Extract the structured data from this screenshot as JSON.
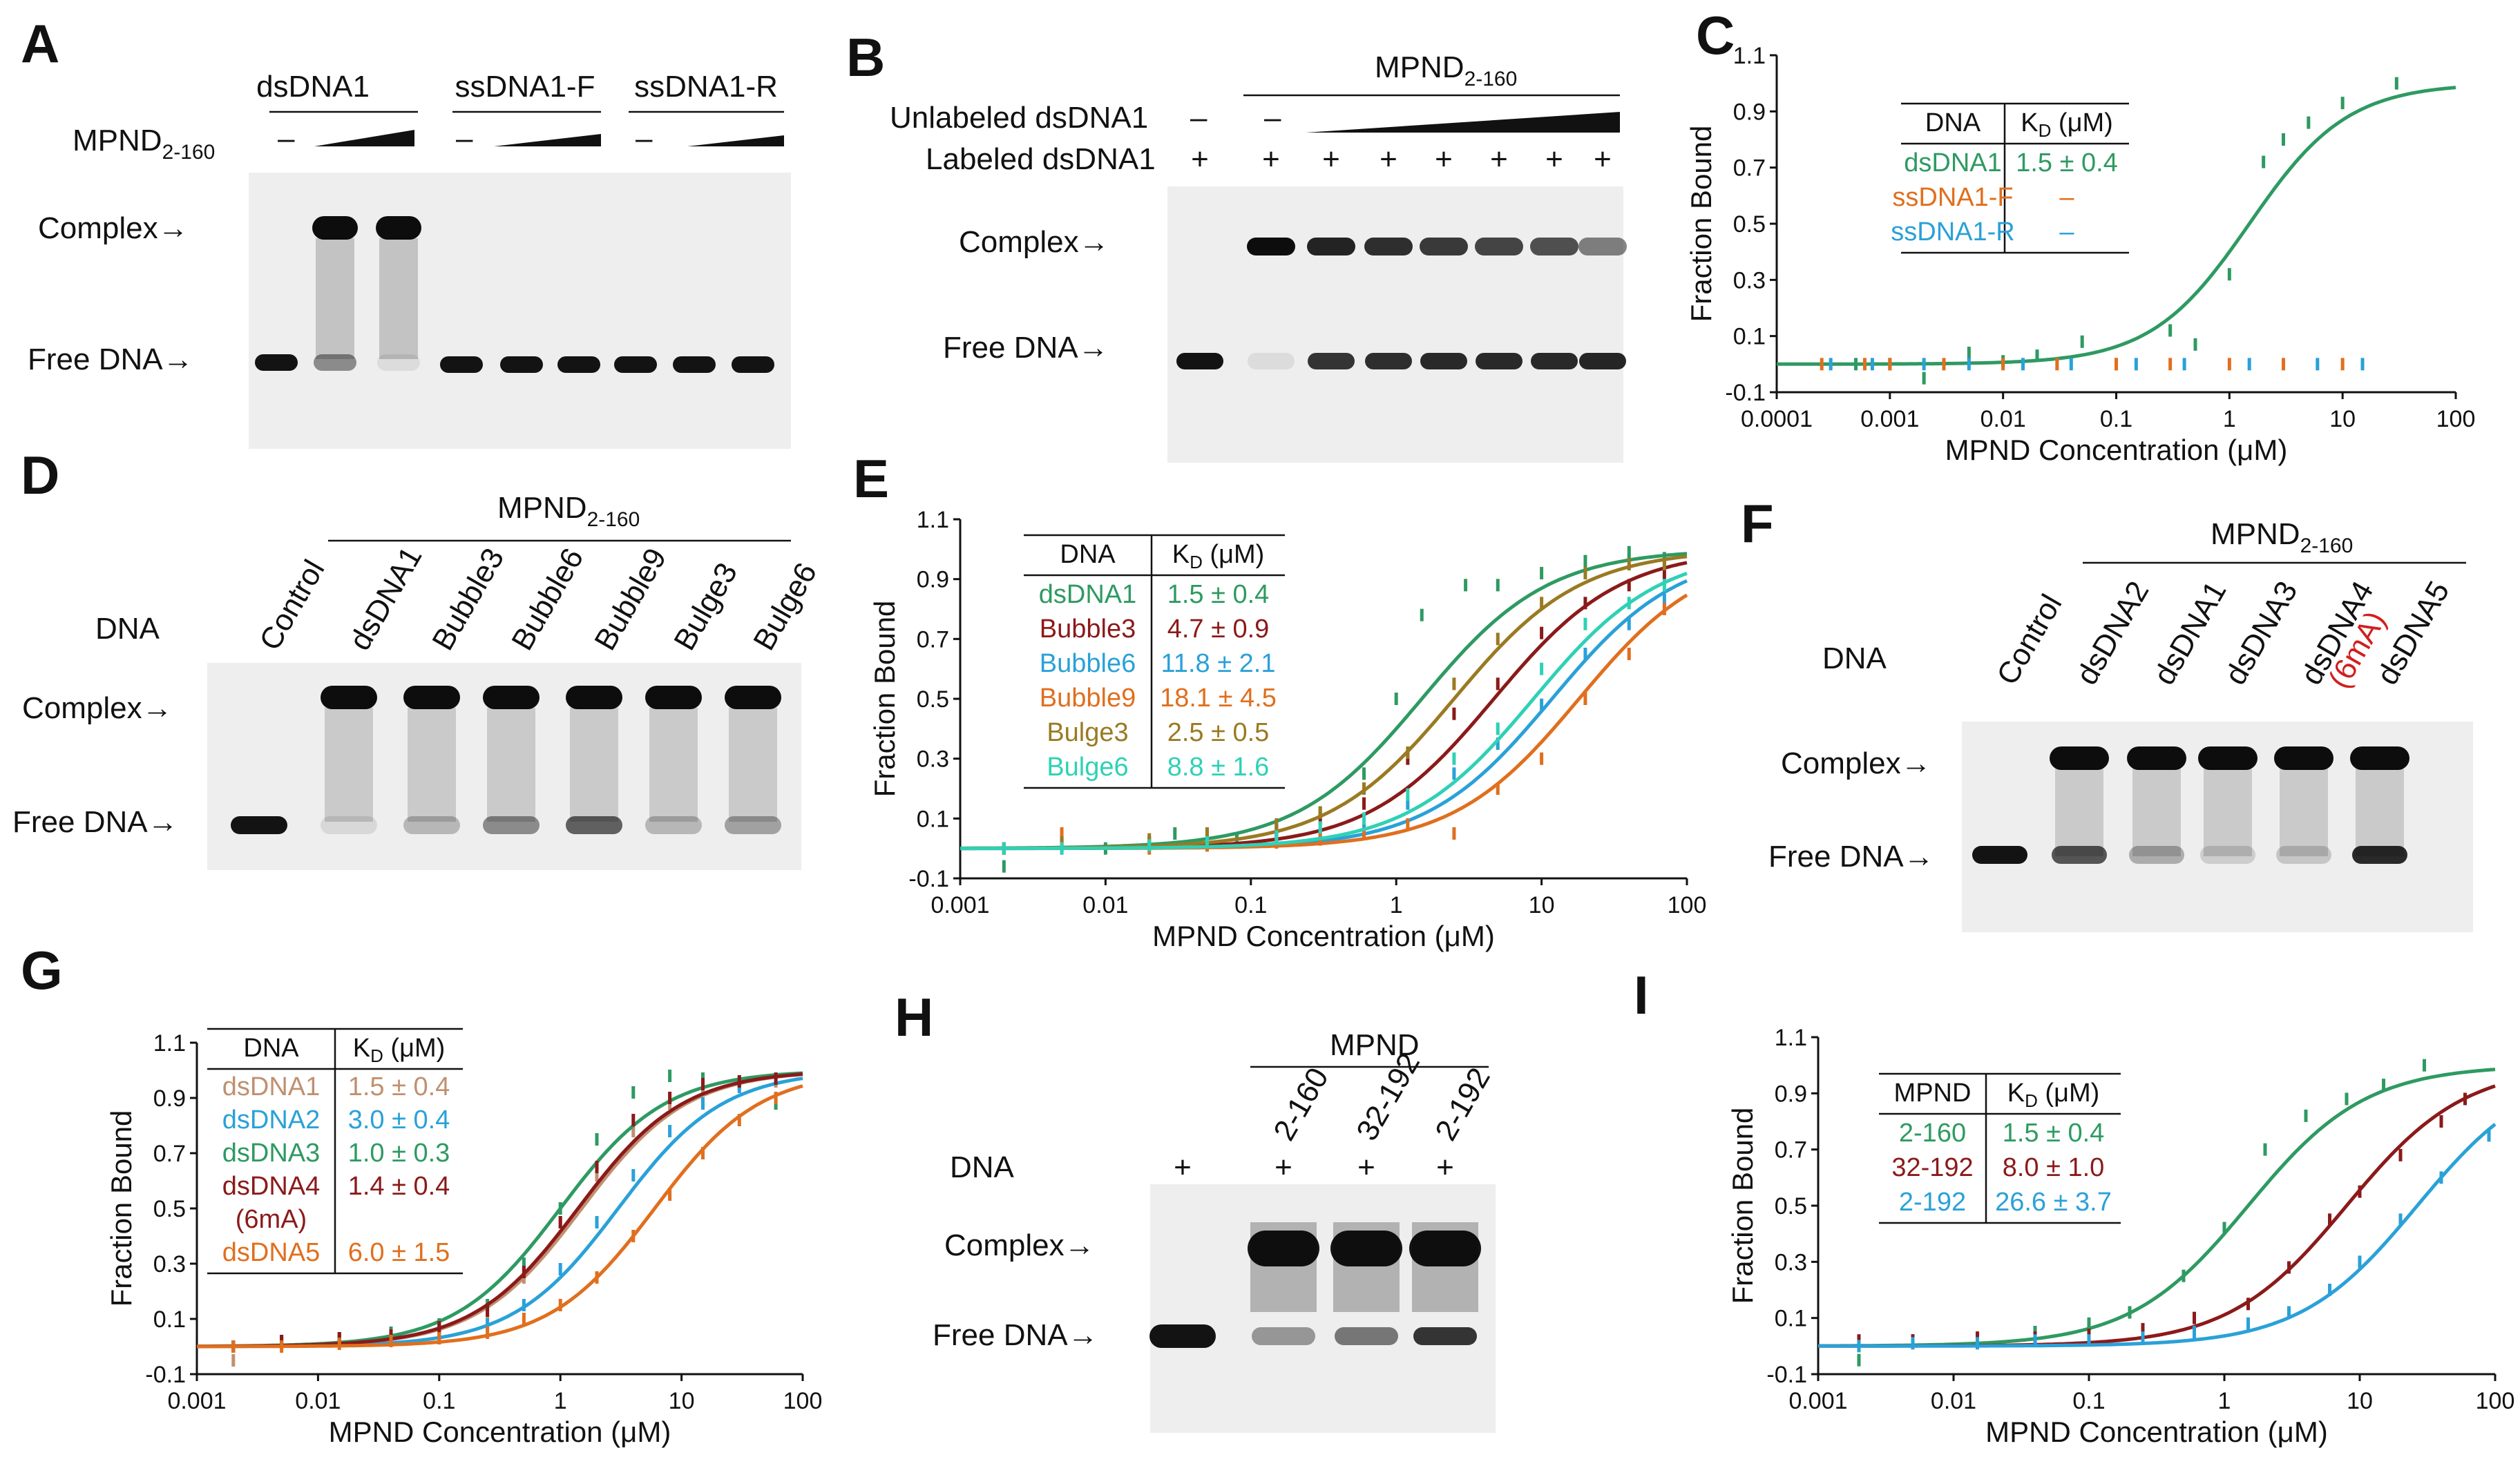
{
  "colors": {
    "green": "#2e9a62",
    "darkred": "#8b1a1a",
    "blue": "#2aa1d8",
    "orange": "#e06f1e",
    "olive": "#9a7a22",
    "teal": "#2fd1b6",
    "tan": "#c09070",
    "red_text": "#d21e1e"
  },
  "panels": {
    "A": {
      "label": "A",
      "groups": [
        "dsDNA1",
        "ssDNA1-F",
        "ssDNA1-R"
      ],
      "protein_main": "MPND",
      "protein_sub": "2-160",
      "minus": "–",
      "complex": "Complex→",
      "free": "Free DNA→"
    },
    "B": {
      "label": "B",
      "protein_main": "MPND",
      "protein_sub": "2-160",
      "unlabeled": "Unlabeled dsDNA1",
      "labeled": "Labeled dsDNA1",
      "minus": "–",
      "plus": "+",
      "complex": "Complex→",
      "free": "Free DNA→"
    },
    "C": {
      "label": "C"
    },
    "D": {
      "label": "D",
      "protein_main": "MPND",
      "protein_sub": "2-160",
      "dna": "DNA",
      "lanes": [
        "Control",
        "dsDNA1",
        "Bubble3",
        "Bubble6",
        "Bubble9",
        "Bulge3",
        "Bulge6"
      ],
      "complex": "Complex→",
      "free": "Free DNA→"
    },
    "E": {
      "label": "E"
    },
    "F": {
      "label": "F",
      "protein_main": "MPND",
      "protein_sub": "2-160",
      "dna": "DNA",
      "lanes": [
        "Control",
        "dsDNA2",
        "dsDNA1",
        "dsDNA3",
        "dsDNA4",
        "dsDNA5"
      ],
      "mod": "(6mA)",
      "complex": "Complex→",
      "free": "Free DNA→"
    },
    "G": {
      "label": "G"
    },
    "H": {
      "label": "H",
      "protein": "MPND",
      "dna": "DNA",
      "lanes": [
        "2-160",
        "32-192",
        "2-192"
      ],
      "plus": "+",
      "complex": "Complex→",
      "free": "Free DNA→"
    },
    "I": {
      "label": "I"
    }
  },
  "chart_data": [
    {
      "panel": "C",
      "type": "scatter",
      "xlabel": "MPND Concentration (μM)",
      "ylabel": "Fraction Bound",
      "xscale": "log",
      "xlim": [
        0.0001,
        100
      ],
      "ylim": [
        -0.1,
        1.1
      ],
      "x_ticks": [
        "0.0001",
        "0.001",
        "0.01",
        "0.1",
        "1",
        "10",
        "100"
      ],
      "y_ticks": [
        "-0.1",
        "0.1",
        "0.3",
        "0.5",
        "0.7",
        "0.9",
        "1.1"
      ],
      "table": {
        "headers": [
          "DNA",
          "K",
          "D",
          " (μM)"
        ],
        "rows": [
          {
            "name": "dsDNA1",
            "kd": "1.5 ± 0.4",
            "color": "#2e9a62"
          },
          {
            "name": "ssDNA1-F",
            "kd": "–",
            "color": "#e06f1e"
          },
          {
            "name": "ssDNA1-R",
            "kd": "–",
            "color": "#2aa1d8"
          }
        ]
      },
      "series": [
        {
          "name": "dsDNA1",
          "color": "#2e9a62",
          "kd": 1.5,
          "fit": true,
          "x": [
            0.0005,
            0.001,
            0.002,
            0.005,
            0.01,
            0.02,
            0.05,
            0.1,
            0.3,
            0.5,
            1,
            2,
            3,
            5,
            10,
            30
          ],
          "y": [
            0.0,
            0.0,
            -0.05,
            0.04,
            0.01,
            0.03,
            0.08,
            0.0,
            0.12,
            0.07,
            0.32,
            0.72,
            0.8,
            0.86,
            0.93,
            1.0
          ]
        },
        {
          "name": "ssDNA1-F",
          "color": "#e06f1e",
          "fit": false,
          "x": [
            0.00025,
            0.0006,
            0.001,
            0.003,
            0.01,
            0.03,
            0.1,
            0.3,
            1,
            3,
            10
          ],
          "y": [
            0.0,
            0.0,
            0.0,
            0.0,
            0.0,
            0.0,
            0.0,
            0.0,
            0.0,
            0.0,
            0.0
          ]
        },
        {
          "name": "ssDNA1-R",
          "color": "#2aa1d8",
          "fit": false,
          "x": [
            0.0003,
            0.0007,
            0.002,
            0.005,
            0.015,
            0.04,
            0.15,
            0.4,
            1.5,
            6,
            15
          ],
          "y": [
            0.0,
            0.0,
            0.0,
            0.0,
            0.0,
            0.0,
            0.0,
            0.0,
            0.0,
            0.0,
            0.0
          ]
        }
      ]
    },
    {
      "panel": "E",
      "type": "scatter",
      "xlabel": "MPND Concentration (μM)",
      "ylabel": "Fraction Bound",
      "xscale": "log",
      "xlim": [
        0.001,
        100
      ],
      "ylim": [
        -0.1,
        1.1
      ],
      "x_ticks": [
        "0.001",
        "0.01",
        "0.1",
        "1",
        "10",
        "100"
      ],
      "y_ticks": [
        "-0.1",
        "0.1",
        "0.3",
        "0.5",
        "0.7",
        "0.9",
        "1.1"
      ],
      "table": {
        "headers": [
          "DNA",
          "K",
          "D",
          " (μM)"
        ],
        "rows": [
          {
            "name": "dsDNA1",
            "kd": "1.5 ± 0.4",
            "color": "#2e9a62"
          },
          {
            "name": "Bubble3",
            "kd": "4.7 ± 0.9",
            "color": "#8b1a1a"
          },
          {
            "name": "Bubble6",
            "kd": "11.8 ± 2.1",
            "color": "#2aa1d8"
          },
          {
            "name": "Bubble9",
            "kd": "18.1 ± 4.5",
            "color": "#e06f1e"
          },
          {
            "name": "Bulge3",
            "kd": "2.5 ± 0.5",
            "color": "#9a7a22"
          },
          {
            "name": "Bulge6",
            "kd": "8.8 ± 1.6",
            "color": "#2fd1b6"
          }
        ]
      },
      "series": [
        {
          "name": "dsDNA1",
          "color": "#2e9a62",
          "kd": 1.5,
          "fit": true,
          "x": [
            0.002,
            0.005,
            0.01,
            0.03,
            0.08,
            0.15,
            0.3,
            0.6,
            1,
            1.5,
            3,
            5,
            10,
            20,
            40,
            70
          ],
          "y": [
            -0.06,
            0.02,
            0.0,
            0.05,
            0.03,
            0.06,
            0.12,
            0.25,
            0.5,
            0.78,
            0.88,
            0.88,
            0.92,
            0.96,
            0.99,
            0.97
          ]
        },
        {
          "name": "Bubble3",
          "color": "#8b1a1a",
          "kd": 4.7,
          "fit": true,
          "x": [
            0.002,
            0.005,
            0.02,
            0.05,
            0.15,
            0.3,
            0.6,
            1.2,
            2.5,
            5,
            10,
            20,
            40,
            70
          ],
          "y": [
            0.0,
            0.01,
            0.02,
            0.04,
            0.06,
            0.1,
            0.15,
            0.3,
            0.45,
            0.55,
            0.72,
            0.82,
            0.88,
            0.92
          ]
        },
        {
          "name": "Bubble6",
          "color": "#2aa1d8",
          "kd": 11.8,
          "fit": true,
          "x": [
            0.002,
            0.005,
            0.02,
            0.05,
            0.15,
            0.3,
            0.6,
            1.2,
            2.5,
            5,
            10,
            20,
            40,
            70
          ],
          "y": [
            0.0,
            0.0,
            0.01,
            0.02,
            0.03,
            0.05,
            0.08,
            0.15,
            0.25,
            0.35,
            0.48,
            0.65,
            0.75,
            0.83
          ]
        },
        {
          "name": "Bubble9",
          "color": "#e06f1e",
          "kd": 18.1,
          "fit": true,
          "x": [
            0.002,
            0.005,
            0.02,
            0.05,
            0.15,
            0.3,
            0.6,
            1.2,
            2.5,
            5,
            10,
            20,
            40,
            70
          ],
          "y": [
            0.0,
            0.05,
            0.0,
            0.01,
            0.02,
            0.03,
            0.05,
            0.08,
            0.05,
            0.2,
            0.3,
            0.5,
            0.65,
            0.8
          ]
        },
        {
          "name": "Bulge3",
          "color": "#9a7a22",
          "kd": 2.5,
          "fit": true,
          "x": [
            0.002,
            0.005,
            0.02,
            0.05,
            0.15,
            0.3,
            0.6,
            1.2,
            2.5,
            5,
            10,
            20,
            40,
            70
          ],
          "y": [
            0.0,
            0.02,
            0.03,
            0.05,
            0.08,
            0.12,
            0.2,
            0.32,
            0.55,
            0.7,
            0.82,
            0.92,
            0.95,
            0.95
          ]
        },
        {
          "name": "Bulge6",
          "color": "#2fd1b6",
          "kd": 8.8,
          "fit": true,
          "x": [
            0.002,
            0.005,
            0.02,
            0.05,
            0.15,
            0.3,
            0.6,
            1.2,
            2.5,
            5,
            10,
            20,
            40,
            70
          ],
          "y": [
            0.0,
            0.0,
            0.01,
            0.02,
            0.04,
            0.07,
            0.1,
            0.18,
            0.3,
            0.4,
            0.6,
            0.75,
            0.82,
            0.88
          ]
        }
      ]
    },
    {
      "panel": "G",
      "type": "scatter",
      "xlabel": "MPND Concentration (μM)",
      "ylabel": "Fraction Bound",
      "xscale": "log",
      "xlim": [
        0.001,
        100
      ],
      "ylim": [
        -0.1,
        1.1
      ],
      "x_ticks": [
        "0.001",
        "0.01",
        "0.1",
        "1",
        "10",
        "100"
      ],
      "y_ticks": [
        "-0.1",
        "0.1",
        "0.3",
        "0.5",
        "0.7",
        "0.9",
        "1.1"
      ],
      "table": {
        "headers": [
          "DNA",
          "K",
          "D",
          " (μM)"
        ],
        "rows": [
          {
            "name": "dsDNA1",
            "kd": "1.5 ± 0.4",
            "color": "#c09070"
          },
          {
            "name": "dsDNA2",
            "kd": "3.0 ± 0.4",
            "color": "#2aa1d8"
          },
          {
            "name": "dsDNA3",
            "kd": "1.0 ± 0.3",
            "color": "#2e9a62"
          },
          {
            "name": "dsDNA4",
            "kd": "1.4 ± 0.4",
            "color": "#8b1a1a"
          },
          {
            "name": "(6mA)",
            "kd": "",
            "color": "#8b1a1a"
          },
          {
            "name": "dsDNA5",
            "kd": "6.0 ± 1.5",
            "color": "#e06f1e"
          }
        ]
      },
      "series": [
        {
          "name": "dsDNA1",
          "color": "#c09070",
          "kd": 1.5,
          "fit": true,
          "x": [
            0.002,
            0.005,
            0.015,
            0.04,
            0.1,
            0.25,
            0.5,
            1,
            2,
            4,
            8,
            15,
            30,
            60
          ],
          "y": [
            -0.05,
            0.02,
            0.03,
            0.04,
            0.06,
            0.12,
            0.25,
            0.45,
            0.62,
            0.78,
            0.88,
            0.93,
            0.95,
            0.96
          ]
        },
        {
          "name": "dsDNA2",
          "color": "#2aa1d8",
          "kd": 3.0,
          "fit": true,
          "x": [
            0.002,
            0.005,
            0.015,
            0.04,
            0.1,
            0.25,
            0.5,
            1,
            2,
            4,
            8,
            15,
            30,
            60
          ],
          "y": [
            0.0,
            0.01,
            0.02,
            0.03,
            0.04,
            0.08,
            0.15,
            0.28,
            0.45,
            0.62,
            0.78,
            0.88,
            0.94,
            0.97
          ]
        },
        {
          "name": "dsDNA3",
          "color": "#2e9a62",
          "kd": 1.0,
          "fit": true,
          "x": [
            0.002,
            0.005,
            0.015,
            0.04,
            0.1,
            0.25,
            0.5,
            1,
            2,
            4,
            8,
            15,
            30,
            60
          ],
          "y": [
            0.0,
            0.02,
            0.03,
            0.05,
            0.08,
            0.15,
            0.3,
            0.5,
            0.75,
            0.92,
            0.98,
            0.97,
            0.96,
            0.88
          ]
        },
        {
          "name": "dsDNA4",
          "color": "#8b1a1a",
          "kd": 1.4,
          "fit": true,
          "x": [
            0.002,
            0.005,
            0.015,
            0.04,
            0.1,
            0.25,
            0.5,
            1,
            2,
            4,
            8,
            15,
            30,
            60
          ],
          "y": [
            0.0,
            0.02,
            0.03,
            0.04,
            0.07,
            0.13,
            0.27,
            0.45,
            0.65,
            0.82,
            0.9,
            0.95,
            0.96,
            0.97
          ]
        },
        {
          "name": "dsDNA5",
          "color": "#e06f1e",
          "kd": 6.0,
          "fit": true,
          "x": [
            0.002,
            0.005,
            0.015,
            0.04,
            0.1,
            0.25,
            0.5,
            1,
            2,
            4,
            8,
            15,
            30,
            60
          ],
          "y": [
            0.0,
            0.0,
            0.01,
            0.02,
            0.03,
            0.05,
            0.1,
            0.15,
            0.25,
            0.4,
            0.55,
            0.7,
            0.82,
            0.9
          ]
        }
      ]
    },
    {
      "panel": "I",
      "type": "scatter",
      "xlabel": "MPND Concentration (μM)",
      "ylabel": "Fraction Bound",
      "xscale": "log",
      "xlim": [
        0.001,
        100
      ],
      "ylim": [
        -0.1,
        1.1
      ],
      "x_ticks": [
        "0.001",
        "0.01",
        "0.1",
        "1",
        "10",
        "100"
      ],
      "y_ticks": [
        "-0.1",
        "0.1",
        "0.3",
        "0.5",
        "0.7",
        "0.9",
        "1.1"
      ],
      "table": {
        "headers": [
          "MPND",
          "K",
          "D",
          " (μM)"
        ],
        "rows": [
          {
            "name": "2-160",
            "kd": "1.5 ± 0.4",
            "color": "#2e9a62"
          },
          {
            "name": "32-192",
            "kd": "8.0 ± 1.0",
            "color": "#8b1a1a"
          },
          {
            "name": "2-192",
            "kd": "26.6 ± 3.7",
            "color": "#2aa1d8"
          }
        ]
      },
      "series": [
        {
          "name": "2-160",
          "color": "#2e9a62",
          "kd": 1.5,
          "fit": true,
          "x": [
            0.002,
            0.005,
            0.015,
            0.04,
            0.1,
            0.2,
            0.5,
            1,
            2,
            4,
            8,
            15,
            30
          ],
          "y": [
            -0.05,
            0.02,
            0.03,
            0.05,
            0.08,
            0.12,
            0.25,
            0.42,
            0.7,
            0.82,
            0.88,
            0.93,
            1.0
          ]
        },
        {
          "name": "32-192",
          "color": "#8b1a1a",
          "kd": 8.0,
          "fit": true,
          "x": [
            0.002,
            0.005,
            0.015,
            0.04,
            0.1,
            0.25,
            0.6,
            1.5,
            3,
            6,
            10,
            20,
            40,
            60
          ],
          "y": [
            0.02,
            0.02,
            0.03,
            0.03,
            0.04,
            0.06,
            0.1,
            0.15,
            0.28,
            0.45,
            0.55,
            0.68,
            0.8,
            0.88
          ]
        },
        {
          "name": "2-192",
          "color": "#2aa1d8",
          "kd": 26.6,
          "fit": true,
          "x": [
            0.002,
            0.005,
            0.015,
            0.04,
            0.1,
            0.25,
            0.6,
            1.5,
            3,
            6,
            10,
            20,
            40,
            90
          ],
          "y": [
            0.0,
            0.01,
            0.01,
            0.02,
            0.02,
            0.03,
            0.05,
            0.08,
            0.12,
            0.2,
            0.3,
            0.45,
            0.6,
            0.75
          ]
        }
      ]
    }
  ]
}
